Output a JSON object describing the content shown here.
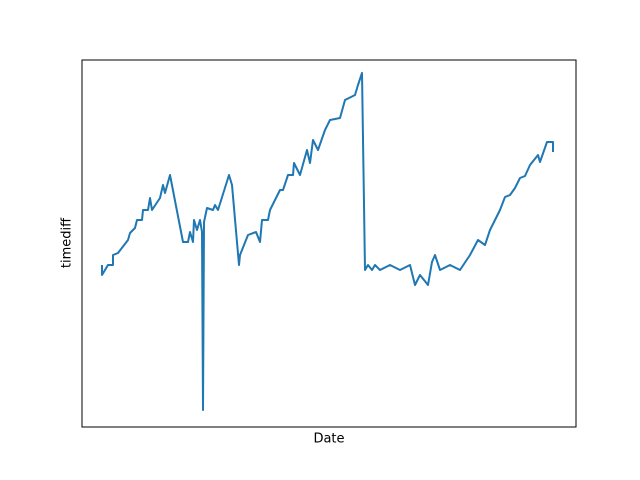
{
  "chart_data": {
    "type": "line",
    "x_label": "Date",
    "y_label": "timediff",
    "xlim": [
      0,
      494
    ],
    "ylim": [
      0,
      367
    ],
    "x": [
      20,
      20,
      26,
      31,
      31,
      36,
      46,
      48,
      53,
      55,
      60,
      61,
      66,
      68,
      70,
      78,
      81,
      83,
      88,
      101,
      106,
      108,
      111,
      112,
      115,
      118,
      120,
      121,
      122,
      125,
      131,
      133,
      136,
      147,
      150,
      157,
      158,
      166,
      174,
      178,
      180,
      186,
      188,
      193,
      198,
      201,
      206,
      211,
      212,
      218,
      225,
      228,
      231,
      236,
      243,
      248,
      258,
      263,
      273,
      276,
      280,
      283,
      286,
      290,
      293,
      298,
      308,
      318,
      328,
      333,
      338,
      346,
      350,
      353,
      358,
      368,
      378,
      388,
      396,
      403,
      408,
      418,
      423,
      428,
      433,
      438,
      443,
      448,
      456,
      458,
      465,
      471,
      471
    ],
    "series": [
      {
        "name": "timediff",
        "color": "#1f77b4",
        "values": [
          162,
          152,
          162,
          162,
          172,
          174,
          187,
          194,
          199,
          207,
          207,
          217,
          217,
          229,
          217,
          229,
          242,
          234,
          252,
          185,
          185,
          195,
          185,
          207,
          197,
          207,
          195,
          17,
          205,
          219,
          217,
          222,
          217,
          252,
          242,
          162,
          172,
          192,
          195,
          185,
          207,
          207,
          217,
          227,
          237,
          237,
          252,
          252,
          264,
          252,
          277,
          264,
          287,
          277,
          297,
          307,
          309,
          327,
          332,
          342,
          354,
          157,
          162,
          157,
          162,
          157,
          162,
          157,
          162,
          142,
          152,
          142,
          165,
          172,
          157,
          162,
          157,
          172,
          187,
          182,
          197,
          217,
          230,
          232,
          239,
          249,
          251,
          262,
          272,
          265,
          285,
          285,
          275
        ]
      }
    ]
  }
}
